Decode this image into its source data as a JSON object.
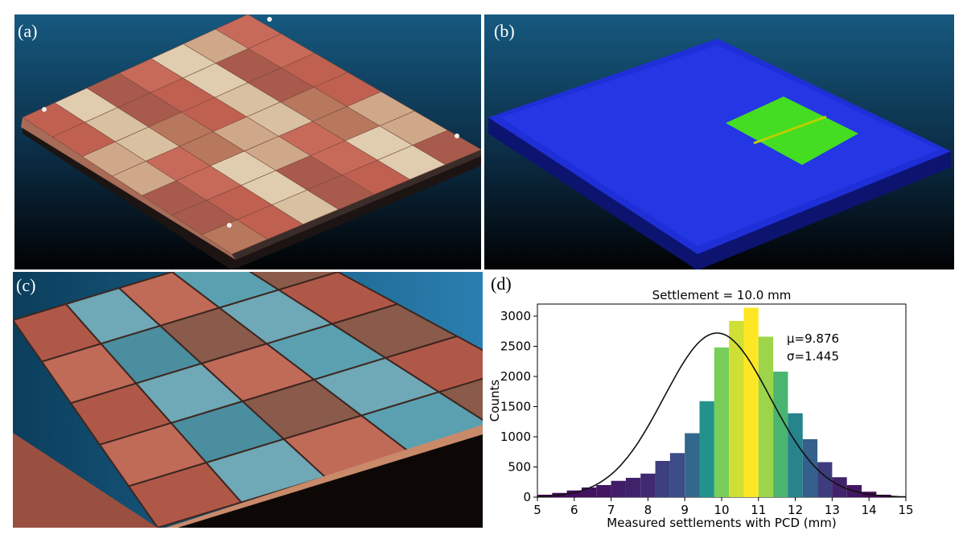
{
  "panels": {
    "a": {
      "label": "(a)"
    },
    "b": {
      "label": "(b)"
    },
    "c": {
      "label": "(c)"
    },
    "d": {
      "label": "(d)"
    }
  },
  "colors": {
    "sky_top": "#16597f",
    "sky_bottom": "#000000",
    "pcd_red": "#c06050",
    "pcd_beige": "#d8c0a0",
    "pcd_teal": "#5aa0b0",
    "pcd_blue": "#1f2fd8",
    "pcd_green": "#44dd22"
  },
  "chart_data": {
    "type": "bar",
    "title": "Settlement = 10.0 mm",
    "xlabel": "Measured settlements with PCD (mm)",
    "ylabel": "Counts",
    "xlim": [
      5,
      15
    ],
    "ylim": [
      0,
      3200
    ],
    "xticks": [
      "5",
      "6",
      "7",
      "8",
      "9",
      "10",
      "11",
      "12",
      "13",
      "14",
      "15"
    ],
    "yticks": [
      "0",
      "500",
      "1000",
      "1500",
      "2000",
      "2500",
      "3000"
    ],
    "bin_width": 0.4,
    "bin_starts": [
      5.0,
      5.4,
      5.8,
      6.2,
      6.6,
      7.0,
      7.4,
      7.8,
      8.2,
      8.6,
      9.0,
      9.4,
      9.8,
      10.2,
      10.6,
      11.0,
      11.4,
      11.8,
      12.2,
      12.6,
      13.0,
      13.4,
      13.8,
      14.2
    ],
    "values": [
      40,
      70,
      110,
      160,
      200,
      270,
      320,
      390,
      600,
      730,
      1060,
      1590,
      2480,
      2920,
      3140,
      2660,
      2080,
      1390,
      960,
      580,
      330,
      200,
      90,
      40
    ],
    "fit_curve": {
      "type": "normal",
      "mu": 9.876,
      "sigma": 1.445,
      "peak": 2720
    },
    "annotations": [
      "μ=9.876",
      "σ=1.445"
    ]
  }
}
